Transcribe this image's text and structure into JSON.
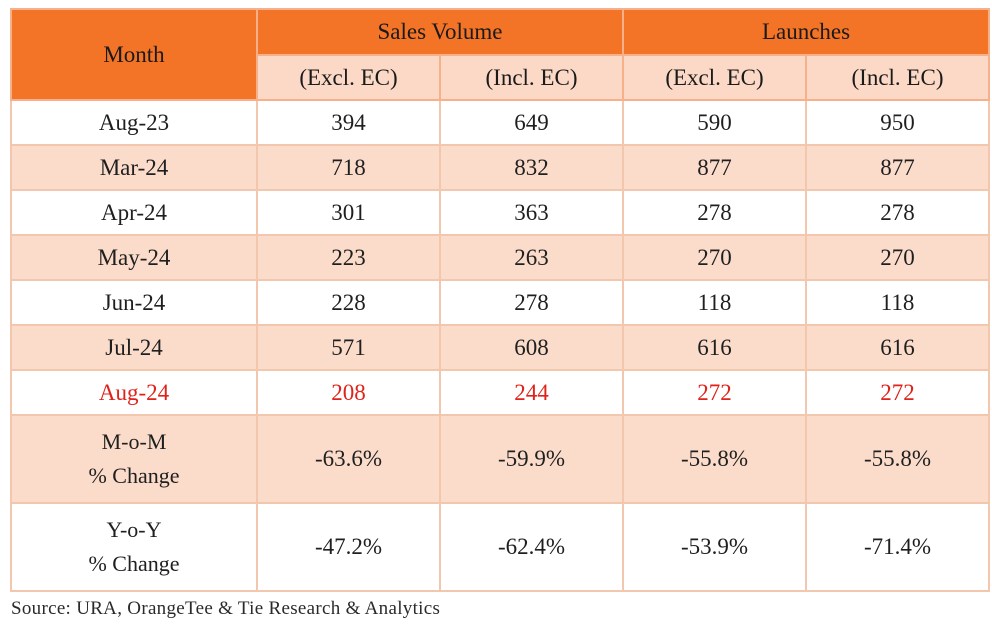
{
  "table": {
    "header": {
      "month": "Month",
      "group_sales": "Sales Volume",
      "group_launches": "Launches",
      "sub": [
        "(Excl. EC)",
        "(Incl. EC)",
        "(Excl. EC)",
        "(Incl. EC)"
      ]
    },
    "rows": [
      {
        "month": "Aug-23",
        "values": [
          "394",
          "649",
          "590",
          "950"
        ]
      },
      {
        "month": "Mar-24",
        "values": [
          "718",
          "832",
          "877",
          "877"
        ]
      },
      {
        "month": "Apr-24",
        "values": [
          "301",
          "363",
          "278",
          "278"
        ]
      },
      {
        "month": "May-24",
        "values": [
          "223",
          "263",
          "270",
          "270"
        ]
      },
      {
        "month": "Jun-24",
        "values": [
          "228",
          "278",
          "118",
          "118"
        ]
      },
      {
        "month": "Jul-24",
        "values": [
          "571",
          "608",
          "616",
          "616"
        ]
      },
      {
        "month": "Aug-24",
        "values": [
          "208",
          "244",
          "272",
          "272"
        ]
      }
    ],
    "mom": {
      "label_line1": "M-o-M",
      "label_line2": "% Change",
      "values": [
        "-63.6%",
        "-59.9%",
        "-55.8%",
        "-55.8%"
      ]
    },
    "yoy": {
      "label_line1": "Y-o-Y",
      "label_line2": "% Change",
      "values": [
        "-47.2%",
        "-62.4%",
        "-53.9%",
        "-71.4%"
      ]
    }
  },
  "source": "Source: URA, OrangeTee & Tie Research & Analytics",
  "colors": {
    "header_orange": "#f47427",
    "row_tint": "#fbdccb",
    "highlight_red": "#e0221a"
  }
}
